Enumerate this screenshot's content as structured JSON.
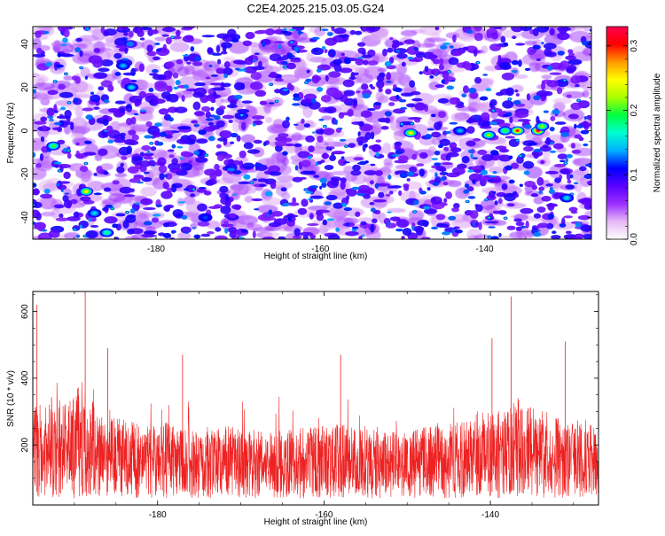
{
  "title": "C2E4.2025.215.03.05.G24",
  "chart_data": [
    {
      "type": "heatmap",
      "xlabel": "Height of straight line (km)",
      "ylabel": "Frequency (Hz)",
      "xlim": [
        -195,
        -127
      ],
      "ylim": [
        -50,
        48
      ],
      "x_ticks": [
        -180,
        -160,
        -140
      ],
      "y_ticks": [
        -40,
        -20,
        0,
        20,
        40
      ],
      "colorbar": {
        "label": "Normalized spectral amplitude",
        "range": [
          0,
          0.33
        ],
        "ticks": [
          0.0,
          0.1,
          0.2,
          0.3
        ],
        "tick_labels": [
          "0.0",
          "0.1",
          "0.2",
          "0.3"
        ],
        "colormap": [
          "#ffffff",
          "#e6b8f5",
          "#9b30ff",
          "#5a00ff",
          "#0000ff",
          "#00b0ff",
          "#00ffd0",
          "#00ff40",
          "#aaff00",
          "#ffff00",
          "#ff9900",
          "#ff0000",
          "#ff0050"
        ]
      },
      "hotspots": [
        {
          "x": -192.5,
          "y": -7,
          "v": 0.2
        },
        {
          "x": -188.5,
          "y": -28,
          "v": 0.25
        },
        {
          "x": -187.5,
          "y": -38,
          "v": 0.15
        },
        {
          "x": -186,
          "y": -47,
          "v": 0.18
        },
        {
          "x": -184,
          "y": 30,
          "v": 0.14
        },
        {
          "x": -183,
          "y": 20,
          "v": 0.15
        },
        {
          "x": -174,
          "y": -40,
          "v": 0.12
        },
        {
          "x": -149,
          "y": -1,
          "v": 0.25
        },
        {
          "x": -143,
          "y": 0,
          "v": 0.14
        },
        {
          "x": -139.5,
          "y": -2,
          "v": 0.22
        },
        {
          "x": -137.5,
          "y": 0,
          "v": 0.2
        },
        {
          "x": -136,
          "y": 0,
          "v": 0.3
        },
        {
          "x": -133.5,
          "y": 0,
          "v": 0.33
        },
        {
          "x": -133,
          "y": 2,
          "v": 0.22
        },
        {
          "x": -130,
          "y": -31,
          "v": 0.15
        }
      ]
    },
    {
      "type": "line",
      "xlabel": "Height of straight line (km)",
      "ylabel": "SNR (10 * v/v)",
      "xlim": [
        -195,
        -127
      ],
      "ylim": [
        20,
        660
      ],
      "x_ticks": [
        -180,
        -160,
        -140
      ],
      "y_ticks": [
        200,
        400,
        600
      ],
      "series": [
        {
          "color": "#ee2222",
          "x": [
            -195,
            -193,
            -191,
            -189,
            -187,
            -185,
            -183,
            -181,
            -179,
            -177,
            -175,
            -173,
            -171,
            -169,
            -167,
            -165,
            -163,
            -161,
            -159,
            -157,
            -155,
            -153,
            -151,
            -149,
            -147,
            -145,
            -143,
            -141,
            -139,
            -137,
            -135,
            -133,
            -131,
            -129,
            -127
          ],
          "y": [
            230,
            260,
            240,
            290,
            220,
            210,
            200,
            190,
            200,
            185,
            180,
            190,
            195,
            185,
            175,
            180,
            185,
            190,
            200,
            190,
            185,
            180,
            175,
            185,
            190,
            195,
            205,
            230,
            240,
            260,
            230,
            220,
            200,
            210,
            190
          ]
        }
      ],
      "peaks": [
        {
          "x": -194.5,
          "y": 620
        },
        {
          "x": -188.7,
          "y": 660
        },
        {
          "x": -186,
          "y": 490
        },
        {
          "x": -177,
          "y": 470
        },
        {
          "x": -158,
          "y": 470
        },
        {
          "x": -139.8,
          "y": 520
        },
        {
          "x": -137.5,
          "y": 645
        },
        {
          "x": -131,
          "y": 510
        }
      ]
    }
  ]
}
